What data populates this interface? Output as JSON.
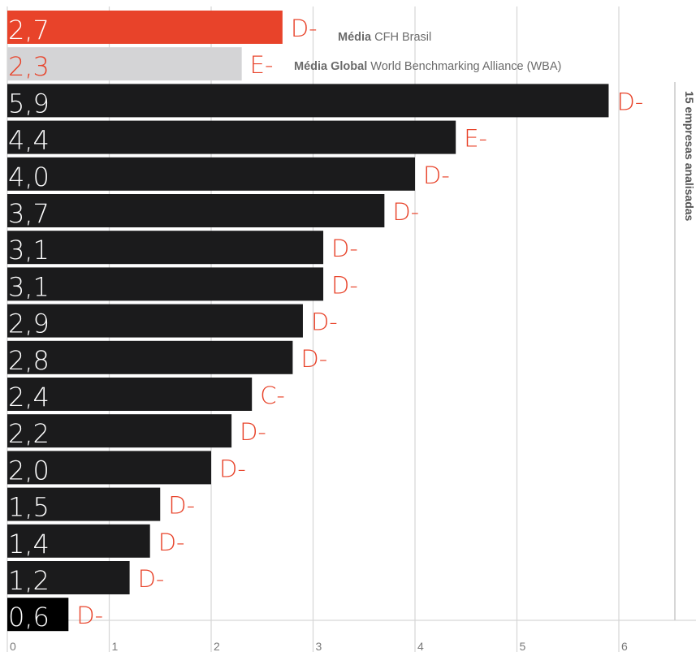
{
  "chart_data": {
    "type": "bar",
    "orientation": "horizontal",
    "xlim": [
      0,
      6.5
    ],
    "x_ticks": [
      "0",
      "1",
      "2",
      "3",
      "4",
      "5",
      "6"
    ],
    "grid": true,
    "colors": {
      "brasil": "#e8432a",
      "global": "#d4d4d6",
      "company": "#1b1b1c",
      "last_company": "#000000",
      "grade": "#e8432a",
      "caption": "#6b6b6b",
      "gridline": "#d6d6d6"
    },
    "averages": [
      {
        "value": 2.7,
        "value_label": "2,7",
        "grade": "D-",
        "caption_bold": "Média",
        "caption_rest": " CFH Brasil",
        "color_key": "brasil"
      },
      {
        "value": 2.3,
        "value_label": "2,3",
        "grade": "E-",
        "caption_bold": "Média Global",
        "caption_rest": " World Benchmarking Alliance (WBA)",
        "color_key": "global"
      }
    ],
    "companies": [
      {
        "value": 5.9,
        "value_label": "5,9",
        "grade": "D-"
      },
      {
        "value": 4.4,
        "value_label": "4,4",
        "grade": "E-"
      },
      {
        "value": 4.0,
        "value_label": "4,0",
        "grade": "D-"
      },
      {
        "value": 3.7,
        "value_label": "3,7",
        "grade": "D-"
      },
      {
        "value": 3.1,
        "value_label": "3,1",
        "grade": "D-"
      },
      {
        "value": 3.1,
        "value_label": "3,1",
        "grade": "D-"
      },
      {
        "value": 2.9,
        "value_label": "2,9",
        "grade": "D-"
      },
      {
        "value": 2.8,
        "value_label": "2,8",
        "grade": "D-"
      },
      {
        "value": 2.4,
        "value_label": "2,4",
        "grade": "C-"
      },
      {
        "value": 2.2,
        "value_label": "2,2",
        "grade": "D-"
      },
      {
        "value": 2.0,
        "value_label": "2,0",
        "grade": "D-"
      },
      {
        "value": 1.5,
        "value_label": "1,5",
        "grade": "D-"
      },
      {
        "value": 1.4,
        "value_label": "1,4",
        "grade": "D-"
      },
      {
        "value": 1.2,
        "value_label": "1,2",
        "grade": "D-"
      },
      {
        "value": 0.6,
        "value_label": "0,6",
        "grade": "D-"
      }
    ],
    "side_label": "15 empresas analisadas"
  }
}
